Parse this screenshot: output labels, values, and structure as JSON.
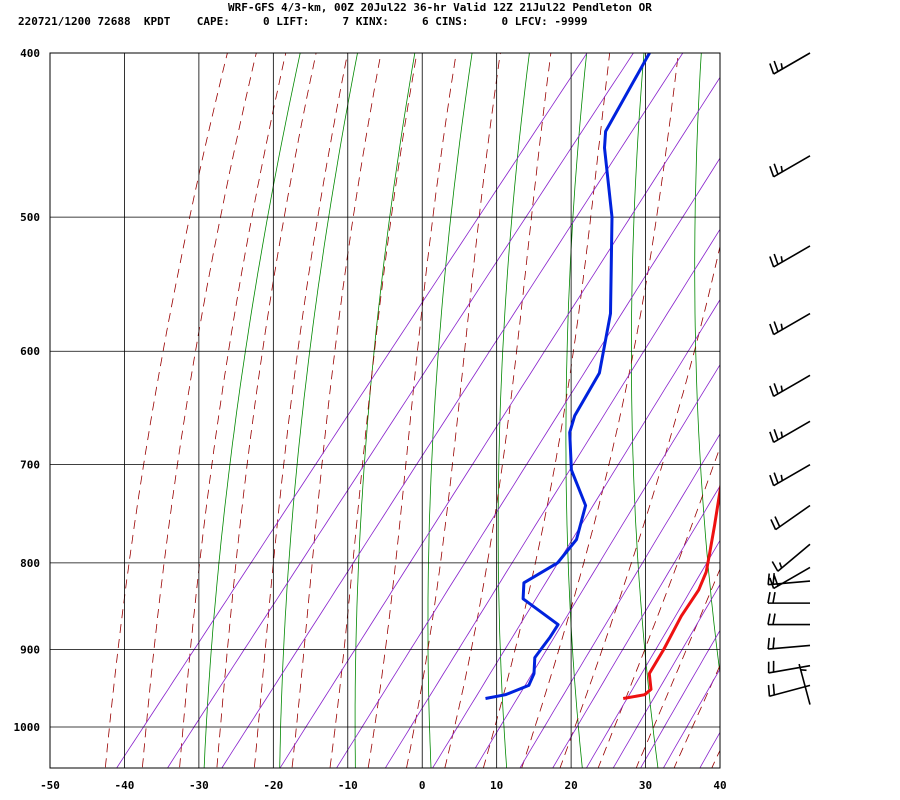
{
  "header": {
    "title": "WRF-GFS 4/3-km, 00Z 20Jul22 36-hr Valid 12Z 21Jul22 Pendleton OR",
    "stats": "220721/1200 72688  KPDT    CAPE:     0 LIFT:     7 KINX:     6 CINS:     0 LFCV: -9999"
  },
  "colors": {
    "temperature": "#ee1111",
    "dewpoint": "#0022dd",
    "isotherm": "#000000",
    "dry_adiabat": "#008800",
    "moist_adiabat": "#990000",
    "mixing_ratio": "#8822cc",
    "wind_barb": "#000000"
  },
  "chart_data": {
    "type": "skew-t",
    "x_ticks": [
      -50,
      -40,
      -30,
      -20,
      -10,
      0,
      10,
      20,
      30,
      40
    ],
    "x_tick_labels": [
      "-50",
      "-40",
      "-30",
      "-20",
      "-10",
      "0",
      "10",
      "20",
      "30",
      "40"
    ],
    "p_ticks": [
      400,
      500,
      600,
      700,
      800,
      900,
      1000
    ],
    "p_tick_labels": [
      "400",
      "500",
      "600",
      "700",
      "800",
      "900",
      "1000"
    ],
    "p_range": [
      400,
      1040
    ],
    "t_range": [
      -50,
      40
    ],
    "grid": true,
    "temperature": [
      {
        "p": 962,
        "t": 20
      },
      {
        "p": 957,
        "t": 22.5
      },
      {
        "p": 950,
        "t": 22.8
      },
      {
        "p": 930,
        "t": 21
      },
      {
        "p": 900,
        "t": 20.5
      },
      {
        "p": 860,
        "t": 19.5
      },
      {
        "p": 830,
        "t": 19.2
      },
      {
        "p": 810,
        "t": 18.4
      },
      {
        "p": 790,
        "t": 17
      },
      {
        "p": 760,
        "t": 14.8
      },
      {
        "p": 700,
        "t": 10
      },
      {
        "p": 650,
        "t": 5.5
      },
      {
        "p": 600,
        "t": 0
      },
      {
        "p": 570,
        "t": -3
      },
      {
        "p": 500,
        "t": -10
      },
      {
        "p": 470,
        "t": -13.5
      },
      {
        "p": 400,
        "t": -20.2
      }
    ],
    "dewpoint": [
      {
        "p": 962,
        "t": 1.5
      },
      {
        "p": 957,
        "t": 3.8
      },
      {
        "p": 945,
        "t": 6
      },
      {
        "p": 930,
        "t": 5.5
      },
      {
        "p": 910,
        "t": 4
      },
      {
        "p": 895,
        "t": 4
      },
      {
        "p": 885,
        "t": 4
      },
      {
        "p": 870,
        "t": 3.8
      },
      {
        "p": 840,
        "t": -3.5
      },
      {
        "p": 822,
        "t": -5
      },
      {
        "p": 800,
        "t": -2.5
      },
      {
        "p": 775,
        "t": -2.3
      },
      {
        "p": 740,
        "t": -4.5
      },
      {
        "p": 705,
        "t": -10
      },
      {
        "p": 670,
        "t": -14
      },
      {
        "p": 655,
        "t": -15
      },
      {
        "p": 618,
        "t": -16
      },
      {
        "p": 570,
        "t": -20.5
      },
      {
        "p": 500,
        "t": -30
      },
      {
        "p": 455,
        "t": -38
      },
      {
        "p": 445,
        "t": -39.5
      },
      {
        "p": 400,
        "t": -41.5
      }
    ],
    "winds": [
      {
        "p": 400,
        "dir": 240,
        "speed": 25
      },
      {
        "p": 460,
        "dir": 240,
        "speed": 25
      },
      {
        "p": 520,
        "dir": 240,
        "speed": 25
      },
      {
        "p": 570,
        "dir": 240,
        "speed": 25
      },
      {
        "p": 620,
        "dir": 240,
        "speed": 25
      },
      {
        "p": 660,
        "dir": 240,
        "speed": 25
      },
      {
        "p": 700,
        "dir": 240,
        "speed": 25
      },
      {
        "p": 740,
        "dir": 235,
        "speed": 20
      },
      {
        "p": 780,
        "dir": 230,
        "speed": 15
      },
      {
        "p": 805,
        "dir": 240,
        "speed": 20
      },
      {
        "p": 820,
        "dir": 265,
        "speed": 20
      },
      {
        "p": 845,
        "dir": 270,
        "speed": 20
      },
      {
        "p": 870,
        "dir": 270,
        "speed": 20
      },
      {
        "p": 895,
        "dir": 265,
        "speed": 20
      },
      {
        "p": 920,
        "dir": 260,
        "speed": 20
      },
      {
        "p": 945,
        "dir": 255,
        "speed": 20
      },
      {
        "p": 970,
        "dir": 345,
        "speed": 5
      }
    ]
  }
}
